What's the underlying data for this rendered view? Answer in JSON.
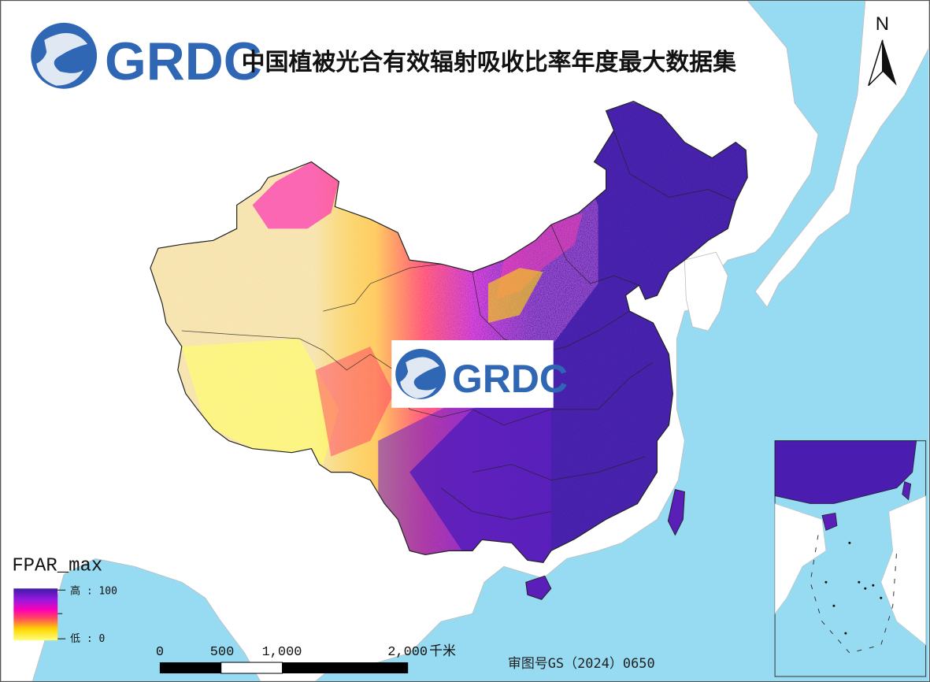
{
  "header": {
    "logo_text": "GRDC",
    "title": "中国植被光合有效辐射吸收比率年度最大数据集"
  },
  "watermark": {
    "logo_text": "GRDC"
  },
  "north_arrow": {
    "label": "N"
  },
  "legend": {
    "title": "FPAR_max",
    "high_label": "高 : 100",
    "low_label": "低 : 0",
    "min_value": 0,
    "max_value": 100,
    "colors": [
      "#ffff7a",
      "#ffd500",
      "#ff4e5a",
      "#ff00b4",
      "#9b18e0",
      "#3d1ca8"
    ]
  },
  "scale_bar": {
    "ticks": [
      "0",
      "500",
      "1,000",
      "2,000"
    ],
    "unit": "千米"
  },
  "approval_number": "审图号GS（2024）0650",
  "colors": {
    "sea": "#97dbf2",
    "land": "#ffffff",
    "low_fpar": "#f6f0a2",
    "high_fpar": "#3d1ca8",
    "logo_blue": "#2f67b5"
  }
}
